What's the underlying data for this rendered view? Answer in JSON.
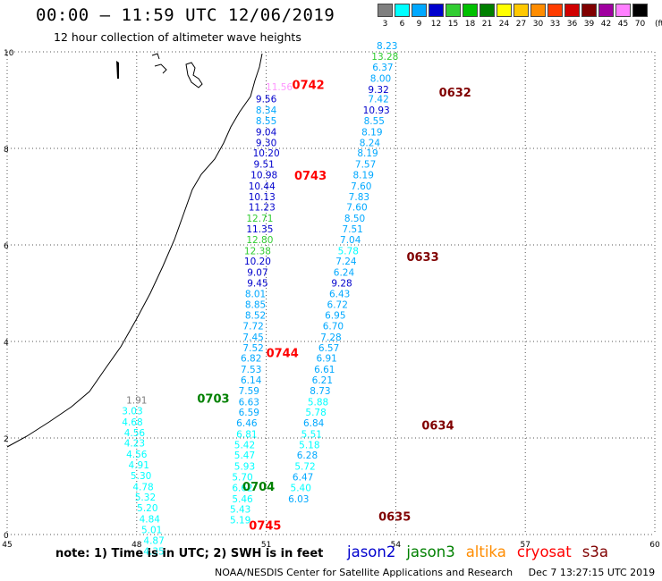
{
  "title": "00:00 – 11:59 UTC 12/06/2019",
  "subtitle": "12 hour collection of altimeter wave heights",
  "legend": {
    "labels": [
      "3",
      "6",
      "9",
      "12",
      "15",
      "18",
      "21",
      "24",
      "27",
      "30",
      "33",
      "36",
      "39",
      "42",
      "45",
      "70"
    ],
    "unit": "(ft)",
    "colors": [
      "#808080",
      "#00ffff",
      "#00a8ff",
      "#0000cd",
      "#32cd32",
      "#00c000",
      "#008000",
      "#ffff00",
      "#ffc800",
      "#ff8c00",
      "#ff3c00",
      "#d00000",
      "#800000",
      "#a000a0",
      "#ff7fff",
      "#000000"
    ]
  },
  "axes": {
    "x_ticks": [
      "45",
      "48",
      "51",
      "54",
      "57",
      "60"
    ],
    "y_ticks": [
      "0",
      "2",
      "4",
      "6",
      "8",
      "10"
    ]
  },
  "chart_data": {
    "type": "scatter",
    "x_range": [
      45,
      60
    ],
    "y_range": [
      0,
      10
    ],
    "series": [
      {
        "x": 51.3,
        "y": 9.2,
        "text": "11.56",
        "color": "#ff99ff"
      },
      {
        "x": 51.0,
        "y": 8.95,
        "text": "9.56",
        "color": "#0000cd"
      },
      {
        "x": 51.0,
        "y": 8.72,
        "text": "8.34",
        "color": "#00a8ff"
      },
      {
        "x": 51.0,
        "y": 8.5,
        "text": "8.55",
        "color": "#00a8ff"
      },
      {
        "x": 51.0,
        "y": 8.27,
        "text": "9.04",
        "color": "#0000cd"
      },
      {
        "x": 51.0,
        "y": 8.05,
        "text": "9.30",
        "color": "#0000cd"
      },
      {
        "x": 51.0,
        "y": 7.83,
        "text": "10.20",
        "color": "#0000cd"
      },
      {
        "x": 50.95,
        "y": 7.6,
        "text": "9.51",
        "color": "#0000cd"
      },
      {
        "x": 50.95,
        "y": 7.38,
        "text": "10.98",
        "color": "#0000cd"
      },
      {
        "x": 50.9,
        "y": 7.15,
        "text": "10.44",
        "color": "#0000cd"
      },
      {
        "x": 50.9,
        "y": 6.93,
        "text": "10.13",
        "color": "#0000cd"
      },
      {
        "x": 50.9,
        "y": 6.71,
        "text": "11.23",
        "color": "#0000cd"
      },
      {
        "x": 50.85,
        "y": 6.48,
        "text": "12.71",
        "color": "#32cd32"
      },
      {
        "x": 50.85,
        "y": 6.26,
        "text": "11.35",
        "color": "#0000cd"
      },
      {
        "x": 50.85,
        "y": 6.04,
        "text": "12.80",
        "color": "#32cd32"
      },
      {
        "x": 50.8,
        "y": 5.81,
        "text": "12.38",
        "color": "#32cd32"
      },
      {
        "x": 50.8,
        "y": 5.59,
        "text": "10.20",
        "color": "#0000cd"
      },
      {
        "x": 50.8,
        "y": 5.36,
        "text": "9.07",
        "color": "#0000cd"
      },
      {
        "x": 50.8,
        "y": 5.14,
        "text": "9.45",
        "color": "#0000cd"
      },
      {
        "x": 50.75,
        "y": 4.92,
        "text": "8.01",
        "color": "#00a8ff"
      },
      {
        "x": 50.75,
        "y": 4.69,
        "text": "8.85",
        "color": "#00a8ff"
      },
      {
        "x": 50.75,
        "y": 4.47,
        "text": "8.52",
        "color": "#00a8ff"
      },
      {
        "x": 50.7,
        "y": 4.25,
        "text": "7.72",
        "color": "#00a8ff"
      },
      {
        "x": 50.7,
        "y": 4.02,
        "text": "7.45",
        "color": "#00a8ff"
      },
      {
        "x": 50.7,
        "y": 3.8,
        "text": "7.52",
        "color": "#00a8ff"
      },
      {
        "x": 50.65,
        "y": 3.58,
        "text": "6.82",
        "color": "#00a8ff"
      },
      {
        "x": 50.65,
        "y": 3.35,
        "text": "7.53",
        "color": "#00a8ff"
      },
      {
        "x": 50.65,
        "y": 3.13,
        "text": "6.14",
        "color": "#00a8ff"
      },
      {
        "x": 50.6,
        "y": 2.91,
        "text": "7.59",
        "color": "#00a8ff"
      },
      {
        "x": 50.6,
        "y": 2.68,
        "text": "6.63",
        "color": "#00a8ff"
      },
      {
        "x": 50.6,
        "y": 2.46,
        "text": "6.59",
        "color": "#00a8ff"
      },
      {
        "x": 50.55,
        "y": 2.24,
        "text": "6.46",
        "color": "#00a8ff"
      },
      {
        "x": 50.55,
        "y": 2.01,
        "text": "6.81",
        "color": "#00ffff"
      },
      {
        "x": 50.5,
        "y": 1.79,
        "text": "5.42",
        "color": "#00ffff"
      },
      {
        "x": 50.5,
        "y": 1.57,
        "text": "5.47",
        "color": "#00ffff"
      },
      {
        "x": 50.5,
        "y": 1.34,
        "text": "5.93",
        "color": "#00ffff"
      },
      {
        "x": 50.45,
        "y": 1.12,
        "text": "5.70",
        "color": "#00ffff"
      },
      {
        "x": 50.45,
        "y": 0.9,
        "text": "6.62",
        "color": "#00ffff"
      },
      {
        "x": 50.45,
        "y": 0.67,
        "text": "5.46",
        "color": "#00ffff"
      },
      {
        "x": 50.4,
        "y": 0.45,
        "text": "5.43",
        "color": "#00ffff"
      },
      {
        "x": 50.4,
        "y": 0.23,
        "text": "5.19",
        "color": "#00ffff"
      },
      {
        "x": 53.8,
        "y": 10.06,
        "text": "8.23",
        "color": "#00a8ff"
      },
      {
        "x": 53.75,
        "y": 9.83,
        "text": "13.28",
        "color": "#32cd32"
      },
      {
        "x": 53.7,
        "y": 9.61,
        "text": "6.37",
        "color": "#00a8ff"
      },
      {
        "x": 53.65,
        "y": 9.38,
        "text": "8.00",
        "color": "#00a8ff"
      },
      {
        "x": 53.6,
        "y": 9.15,
        "text": "9.32",
        "color": "#0000cd"
      },
      {
        "x": 53.6,
        "y": 8.95,
        "text": "7.42",
        "color": "#00a8ff"
      },
      {
        "x": 53.55,
        "y": 8.72,
        "text": "10.93",
        "color": "#0000cd"
      },
      {
        "x": 53.5,
        "y": 8.5,
        "text": "8.55",
        "color": "#00a8ff"
      },
      {
        "x": 53.45,
        "y": 8.27,
        "text": "8.19",
        "color": "#00a8ff"
      },
      {
        "x": 53.4,
        "y": 8.05,
        "text": "8.24",
        "color": "#00a8ff"
      },
      {
        "x": 53.35,
        "y": 7.83,
        "text": "8.19",
        "color": "#00a8ff"
      },
      {
        "x": 53.3,
        "y": 7.6,
        "text": "7.57",
        "color": "#00a8ff"
      },
      {
        "x": 53.25,
        "y": 7.38,
        "text": "8.19",
        "color": "#00a8ff"
      },
      {
        "x": 53.2,
        "y": 7.15,
        "text": "7.60",
        "color": "#00a8ff"
      },
      {
        "x": 53.15,
        "y": 6.93,
        "text": "7.83",
        "color": "#00a8ff"
      },
      {
        "x": 53.1,
        "y": 6.71,
        "text": "7.60",
        "color": "#00a8ff"
      },
      {
        "x": 53.05,
        "y": 6.48,
        "text": "8.50",
        "color": "#00a8ff"
      },
      {
        "x": 53.0,
        "y": 6.26,
        "text": "7.51",
        "color": "#00a8ff"
      },
      {
        "x": 52.95,
        "y": 6.04,
        "text": "7.04",
        "color": "#00a8ff"
      },
      {
        "x": 52.9,
        "y": 5.81,
        "text": "5.78",
        "color": "#00ffff"
      },
      {
        "x": 52.85,
        "y": 5.59,
        "text": "7.24",
        "color": "#00a8ff"
      },
      {
        "x": 52.8,
        "y": 5.36,
        "text": "6.24",
        "color": "#00a8ff"
      },
      {
        "x": 52.75,
        "y": 5.14,
        "text": "9.28",
        "color": "#0000cd"
      },
      {
        "x": 52.7,
        "y": 4.92,
        "text": "6.43",
        "color": "#00a8ff"
      },
      {
        "x": 52.65,
        "y": 4.69,
        "text": "6.72",
        "color": "#00a8ff"
      },
      {
        "x": 52.6,
        "y": 4.47,
        "text": "6.95",
        "color": "#00a8ff"
      },
      {
        "x": 52.55,
        "y": 4.25,
        "text": "6.70",
        "color": "#00a8ff"
      },
      {
        "x": 52.5,
        "y": 4.02,
        "text": "7.28",
        "color": "#00a8ff"
      },
      {
        "x": 52.45,
        "y": 3.8,
        "text": "6.57",
        "color": "#00a8ff"
      },
      {
        "x": 52.4,
        "y": 3.58,
        "text": "6.91",
        "color": "#00a8ff"
      },
      {
        "x": 52.35,
        "y": 3.35,
        "text": "6.61",
        "color": "#00a8ff"
      },
      {
        "x": 52.3,
        "y": 3.13,
        "text": "6.21",
        "color": "#00a8ff"
      },
      {
        "x": 52.25,
        "y": 2.91,
        "text": "8.73",
        "color": "#00a8ff"
      },
      {
        "x": 52.2,
        "y": 2.68,
        "text": "5.88",
        "color": "#00ffff"
      },
      {
        "x": 52.15,
        "y": 2.46,
        "text": "5.78",
        "color": "#00ffff"
      },
      {
        "x": 52.1,
        "y": 2.24,
        "text": "6.84",
        "color": "#00a8ff"
      },
      {
        "x": 52.05,
        "y": 2.01,
        "text": "5.51",
        "color": "#00ffff"
      },
      {
        "x": 52.0,
        "y": 1.79,
        "text": "5.18",
        "color": "#00ffff"
      },
      {
        "x": 51.95,
        "y": 1.57,
        "text": "6.28",
        "color": "#00a8ff"
      },
      {
        "x": 51.9,
        "y": 1.34,
        "text": "5.72",
        "color": "#00ffff"
      },
      {
        "x": 51.85,
        "y": 1.12,
        "text": "6.47",
        "color": "#00a8ff"
      },
      {
        "x": 51.8,
        "y": 0.9,
        "text": "5.40",
        "color": "#00ffff"
      },
      {
        "x": 51.75,
        "y": 0.67,
        "text": "6.03",
        "color": "#00a8ff"
      },
      {
        "x": 48.0,
        "y": 2.71,
        "text": "1.91",
        "color": "#808080"
      },
      {
        "x": 47.9,
        "y": 2.49,
        "text": "3.03",
        "color": "#00ffff"
      },
      {
        "x": 47.9,
        "y": 2.26,
        "text": "4.68",
        "color": "#00ffff"
      },
      {
        "x": 47.95,
        "y": 2.04,
        "text": "4.56",
        "color": "#00ffff"
      },
      {
        "x": 47.95,
        "y": 1.82,
        "text": "4.23",
        "color": "#00ffff"
      },
      {
        "x": 48.0,
        "y": 1.59,
        "text": "4.56",
        "color": "#00ffff"
      },
      {
        "x": 48.05,
        "y": 1.37,
        "text": "4.91",
        "color": "#00ffff"
      },
      {
        "x": 48.1,
        "y": 1.15,
        "text": "5.30",
        "color": "#00ffff"
      },
      {
        "x": 48.15,
        "y": 0.92,
        "text": "4.78",
        "color": "#00ffff"
      },
      {
        "x": 48.2,
        "y": 0.7,
        "text": "5.32",
        "color": "#00ffff"
      },
      {
        "x": 48.25,
        "y": 0.48,
        "text": "5.20",
        "color": "#00ffff"
      },
      {
        "x": 48.3,
        "y": 0.25,
        "text": "4.84",
        "color": "#00ffff"
      },
      {
        "x": 48.35,
        "y": 0.03,
        "text": "5.01",
        "color": "#00ffff"
      },
      {
        "x": 48.4,
        "y": -0.19,
        "text": "4.87",
        "color": "#00ffff"
      },
      {
        "x": 48.4,
        "y": -0.42,
        "text": "4.35",
        "color": "#00ffff"
      }
    ],
    "pass_labels": [
      {
        "x": 51.6,
        "y": 9.23,
        "text": "0742",
        "color": "#ff0000"
      },
      {
        "x": 55.0,
        "y": 9.07,
        "text": "0632",
        "color": "#800000"
      },
      {
        "x": 51.65,
        "y": 7.35,
        "text": "0743",
        "color": "#ff0000"
      },
      {
        "x": 54.25,
        "y": 5.67,
        "text": "0633",
        "color": "#800000"
      },
      {
        "x": 51.0,
        "y": 3.68,
        "text": "0744",
        "color": "#ff0000"
      },
      {
        "x": 49.4,
        "y": 2.73,
        "text": "0703",
        "color": "#008000"
      },
      {
        "x": 54.6,
        "y": 2.18,
        "text": "0634",
        "color": "#800000"
      },
      {
        "x": 50.45,
        "y": 0.91,
        "text": "0704",
        "color": "#008000"
      },
      {
        "x": 53.6,
        "y": 0.29,
        "text": "0635",
        "color": "#800000"
      },
      {
        "x": 50.6,
        "y": 0.1,
        "text": "0745",
        "color": "#ff0000"
      }
    ]
  },
  "note": "note: 1) Time is in UTC; 2) SWH is in feet",
  "satellites": [
    {
      "name": "jason2",
      "color": "#0000cd"
    },
    {
      "name": "jason3",
      "color": "#008000"
    },
    {
      "name": "altika",
      "color": "#ff8c00"
    },
    {
      "name": "cryosat",
      "color": "#ff0000"
    },
    {
      "name": "s3a",
      "color": "#800000"
    }
  ],
  "credit": {
    "org": "NOAA/NESDIS Center for Satellite Applications and Research",
    "timestamp": "Dec  7 13:27:15 UTC 2019"
  }
}
